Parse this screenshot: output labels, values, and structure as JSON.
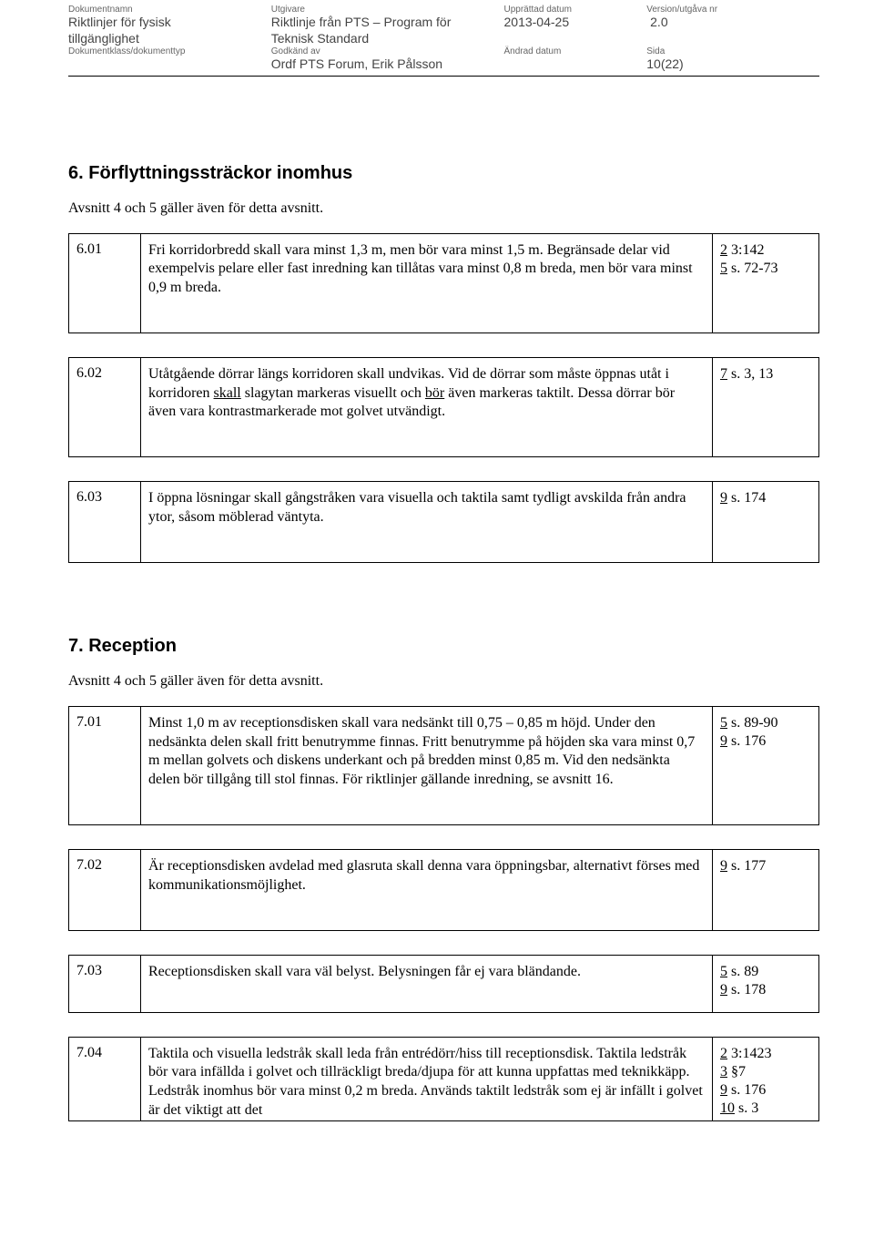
{
  "header": {
    "labels": {
      "dokumentnamn": "Dokumentnamn",
      "utgivare": "Utgivare",
      "upprattad": "Upprättad datum",
      "version": "Version/utgåva nr",
      "dokklass": "Dokumentklass/dokumenttyp",
      "godkand": "Godkänd av",
      "andrad": "Ändrad datum",
      "sida": "Sida"
    },
    "dokumentnamn_l1": "Riktlinjer för fysisk",
    "dokumentnamn_l2": "tillgänglighet",
    "utgivare_l1": "Riktlinje från PTS – Program för",
    "utgivare_l2": "Teknisk Standard",
    "upprattad": "2013-04-25",
    "version": "2.0",
    "godkand": "Ordf PTS Forum, Erik Pålsson",
    "sida": "10(22)"
  },
  "sec6": {
    "title": "6. Förflyttningssträckor inomhus",
    "note": "Avsnitt 4 och 5 gäller även för detta avsnitt.",
    "r1": {
      "num": "6.01",
      "text": "Fri korridorbredd skall vara minst 1,3 m, men bör vara minst 1,5 m. Begränsade delar vid exempelvis pelare eller fast inredning kan tillåtas vara minst 0,8 m breda, men bör vara minst 0,9 m breda.",
      "ref_a_n": "2",
      "ref_a_t": " 3:142",
      "ref_b_n": "5",
      "ref_b_t": "  s. 72-73"
    },
    "r2": {
      "num": "6.02",
      "t1": "Utåtgående dörrar längs korridoren skall undvikas. Vid de dörrar som måste öppnas utåt i korridoren ",
      "u1": "skall",
      "t2": " slagytan markeras visuellt och ",
      "u2": "bör",
      "t3": " även markeras taktilt. Dessa dörrar bör även vara kontrastmarkerade mot golvet utvändigt.",
      "ref_a_n": "7",
      "ref_a_t": " s. 3, 13"
    },
    "r3": {
      "num": "6.03",
      "text": "I öppna lösningar skall gångstråken vara visuella och taktila samt tydligt avskilda från andra ytor, såsom möblerad väntyta.",
      "ref_a_n": "9",
      "ref_a_t": " s. 174"
    }
  },
  "sec7": {
    "title": "7. Reception",
    "note": "Avsnitt 4 och 5 gäller även för detta avsnitt.",
    "r1": {
      "num": "7.01",
      "text": "Minst 1,0 m av receptionsdisken skall vara nedsänkt till 0,75 – 0,85 m höjd. Under den nedsänkta delen skall fritt benutrymme finnas. Fritt benutrymme på höjden ska vara minst 0,7 m mellan golvets och diskens underkant och på bredden minst 0,85 m. Vid den nedsänkta delen bör tillgång till stol finnas. För riktlinjer gällande inredning, se avsnitt 16.",
      "ref_a_n": "5",
      "ref_a_t": " s. 89-90",
      "ref_b_n": "9",
      "ref_b_t": " s. 176"
    },
    "r2": {
      "num": "7.02",
      "text": "Är receptionsdisken avdelad med glasruta skall denna vara öppningsbar, alternativt förses med kommunikationsmöjlighet.",
      "ref_a_n": "9",
      "ref_a_t": " s. 177"
    },
    "r3": {
      "num": "7.03",
      "text": "Receptionsdisken skall vara väl belyst. Belysningen får ej vara bländande.",
      "ref_a_n": "5",
      "ref_a_t": " s. 89",
      "ref_b_n": "9",
      "ref_b_t": " s. 178"
    },
    "r4": {
      "num": "7.04",
      "text": "Taktila och visuella ledstråk skall leda från entrédörr/hiss till receptionsdisk. Taktila ledstråk bör vara infällda i golvet och tillräckligt breda/djupa för att kunna uppfattas med teknikkäpp. Ledstråk inomhus bör vara minst 0,2 m breda. Används taktilt ledstråk som ej är infällt i golvet är det viktigt att det",
      "ref_a_n": "2",
      "ref_a_t": " 3:1423",
      "ref_b_n": "3",
      "ref_b_t": " §7",
      "ref_c_n": "9",
      "ref_c_t": " s. 176",
      "ref_d_n": "10",
      "ref_d_t": " s. 3"
    }
  }
}
